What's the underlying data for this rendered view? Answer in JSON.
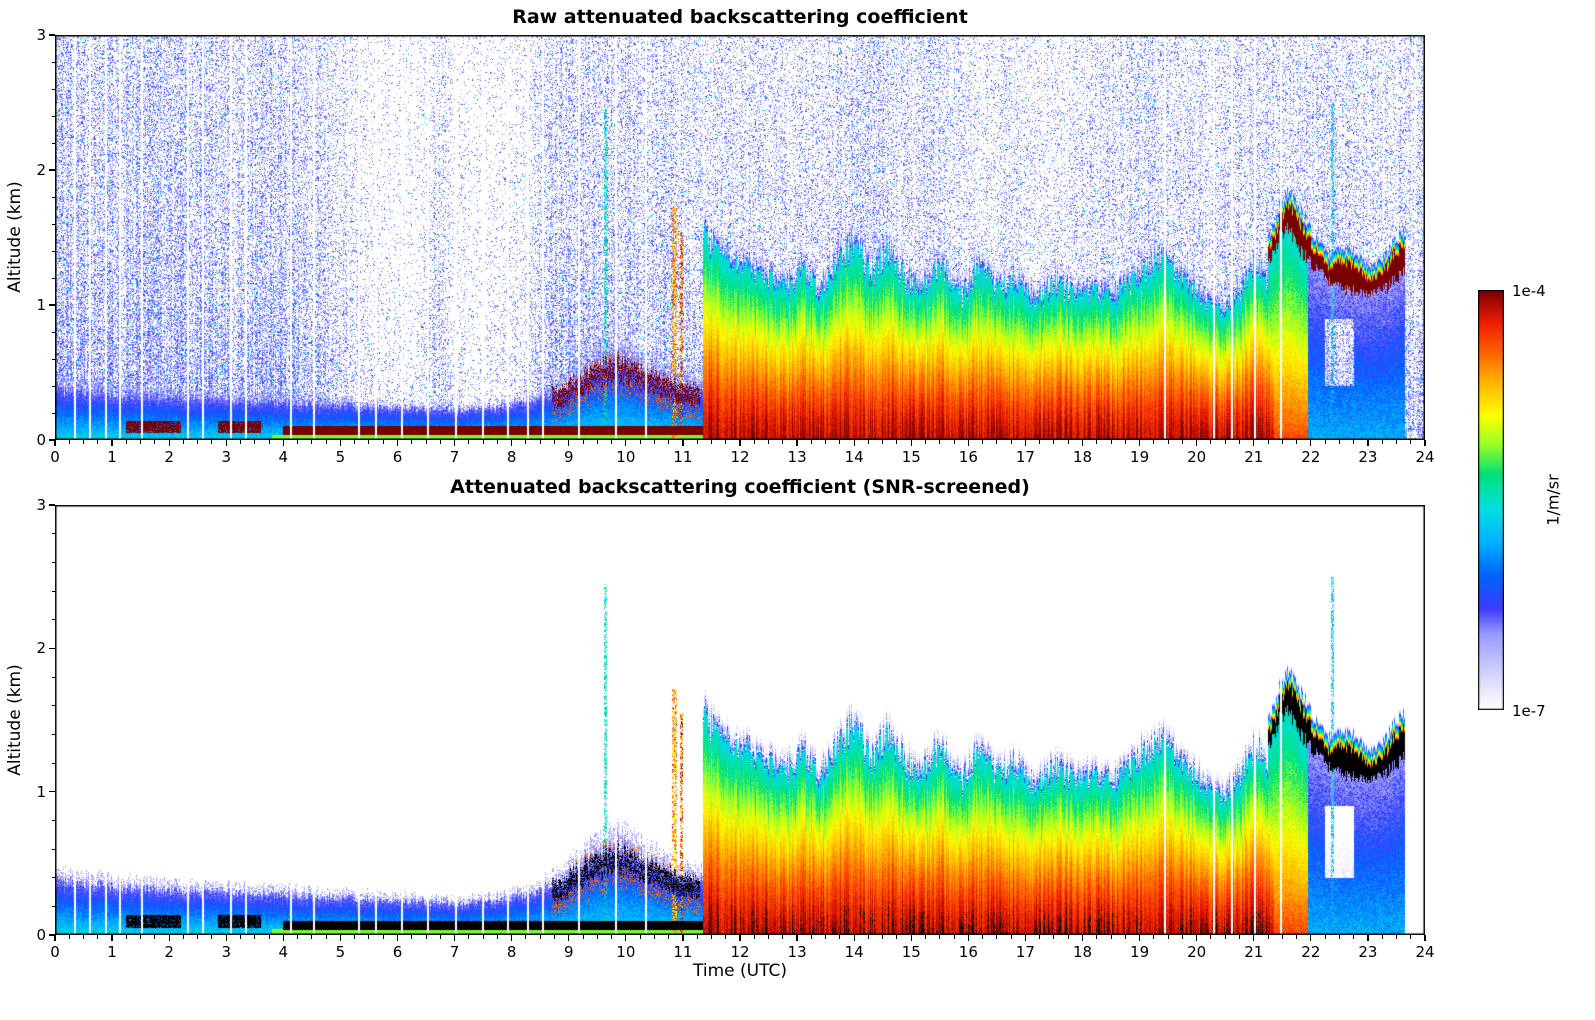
{
  "chart_data": {
    "type": "heatmap",
    "panels": [
      {
        "title": "Raw attenuated backscattering coefficient",
        "ylabel": "Altitude (km)",
        "raw": true
      },
      {
        "title": "Attenuated backscattering coefficient (SNR-screened)",
        "ylabel": "Altitude (km)",
        "raw": false
      }
    ],
    "xlabel": "Time (UTC)",
    "x": {
      "min": 0,
      "max": 24,
      "major_ticks": [
        0,
        1,
        2,
        3,
        4,
        5,
        6,
        7,
        8,
        9,
        10,
        11,
        12,
        13,
        14,
        15,
        16,
        17,
        18,
        19,
        20,
        21,
        22,
        23,
        24
      ],
      "minor_step": 0.25
    },
    "y": {
      "min": 0,
      "max": 3,
      "major_ticks": [
        0,
        1,
        2,
        3
      ],
      "minor_step": 0.2
    },
    "colorbar": {
      "label": "1/m/sr",
      "top_label": "1e-4",
      "bottom_label": "1e-7",
      "log_min_exp": -7,
      "log_max_exp": -4,
      "stops": [
        [
          0,
          "#ffffff"
        ],
        [
          0.06,
          "#e0e0ff"
        ],
        [
          0.12,
          "#bebeff"
        ],
        [
          0.18,
          "#9898ff"
        ],
        [
          0.24,
          "#3c3cff"
        ],
        [
          0.32,
          "#0064ff"
        ],
        [
          0.4,
          "#00b4ff"
        ],
        [
          0.48,
          "#00e0e0"
        ],
        [
          0.56,
          "#00e078"
        ],
        [
          0.63,
          "#96ff28"
        ],
        [
          0.7,
          "#ffff00"
        ],
        [
          0.78,
          "#ffb400"
        ],
        [
          0.85,
          "#ff6400"
        ],
        [
          0.92,
          "#f01e00"
        ],
        [
          1,
          "#780000"
        ]
      ]
    },
    "features": {
      "data_end": 23.65,
      "bl_top": {
        "t": [
          0,
          1,
          2,
          3,
          4,
          5,
          6,
          7,
          7.8,
          8.4,
          8.8,
          9.2,
          9.5,
          9.8,
          10.1,
          10.4,
          10.7,
          11,
          11.45
        ],
        "v": [
          0.38,
          0.34,
          0.31,
          0.3,
          0.28,
          0.26,
          0.24,
          0.22,
          0.24,
          0.3,
          0.38,
          0.5,
          0.58,
          0.66,
          0.6,
          0.52,
          0.48,
          0.42,
          0.4
        ]
      },
      "surface_layer": {
        "blob_intervals": [
          [
            1.25,
            2.2
          ],
          [
            2.85,
            3.6
          ]
        ],
        "line_start": 4.0,
        "line_end": 11.35
      },
      "plume": {
        "t_start": 11.35,
        "t_end": 21.35,
        "top": {
          "t": [
            11.35,
            11.45,
            11.7,
            12,
            12.4,
            12.8,
            13.1,
            13.4,
            13.7,
            14,
            14.3,
            14.6,
            14.9,
            15.2,
            15.5,
            15.9,
            16.2,
            16.5,
            16.9,
            17.2,
            17.5,
            17.9,
            18.2,
            18.6,
            19,
            19.4,
            19.7,
            20,
            20.4,
            20.7,
            21,
            21.35
          ],
          "v": [
            1.6,
            1.45,
            1.35,
            1.3,
            1.22,
            1.12,
            1.25,
            1.1,
            1.3,
            1.45,
            1.2,
            1.4,
            1.18,
            1.1,
            1.3,
            1.05,
            1.28,
            1.1,
            1.18,
            1.0,
            1.15,
            1.05,
            1.12,
            1.05,
            1.22,
            1.35,
            1.18,
            1.08,
            0.95,
            1.05,
            1.3,
            1.1
          ]
        }
      },
      "cloud": {
        "t_start": 21.25,
        "base": {
          "t": [
            21.25,
            21.45,
            21.6,
            21.8,
            22,
            22.3,
            22.6,
            23,
            23.3,
            23.65
          ],
          "v": [
            1.3,
            1.5,
            1.58,
            1.42,
            1.3,
            1.18,
            1.12,
            1.08,
            1.12,
            1.25
          ]
        }
      },
      "noise_density": {
        "t": [
          0,
          2,
          4,
          4.8,
          5.3,
          5.7,
          6.3,
          6.8,
          6.95,
          7.3,
          7.8,
          8.3,
          8.6,
          9,
          9.6,
          10,
          10.4,
          10.7,
          11,
          11.4,
          12,
          12.6,
          13.2,
          13.8,
          14.4,
          14.8,
          15.2,
          15.8,
          16.3,
          16.7,
          17.1,
          17.5,
          18,
          18.5,
          19,
          19.5,
          20,
          21,
          22,
          23,
          24
        ],
        "v": [
          0.95,
          0.9,
          0.85,
          0.6,
          0.3,
          0.18,
          0.15,
          0.55,
          0.25,
          0.15,
          0.18,
          0.3,
          0.7,
          0.85,
          0.75,
          0.85,
          0.6,
          0.85,
          0.7,
          0.6,
          0.6,
          0.55,
          0.5,
          0.65,
          0.8,
          0.6,
          0.65,
          0.5,
          0.35,
          0.55,
          0.35,
          0.4,
          0.5,
          0.55,
          0.65,
          0.6,
          0.55,
          0.6,
          0.65,
          0.6,
          0.55
        ]
      },
      "gaps": [
        0.35,
        0.62,
        0.9,
        1.14,
        1.52,
        2.33,
        2.6,
        3.08,
        3.34,
        4.14,
        4.53,
        5.33,
        5.62,
        6.08,
        6.53,
        7.03,
        7.49,
        7.94,
        8.28,
        8.55,
        9.18,
        9.82,
        10.35,
        19.45,
        20.3,
        20.62,
        21.02,
        21.48
      ],
      "spikes": [
        {
          "t": 9.65,
          "top": 2.45,
          "v": 0.45,
          "w": 0.025
        },
        {
          "t": 10.85,
          "top": 1.72,
          "v": 0.72,
          "w": 0.04
        },
        {
          "t": 10.98,
          "top": 1.55,
          "v": 0.78,
          "w": 0.03
        },
        {
          "t": 22.38,
          "top": 2.5,
          "v": 0.4,
          "w": 0.02
        }
      ]
    }
  }
}
